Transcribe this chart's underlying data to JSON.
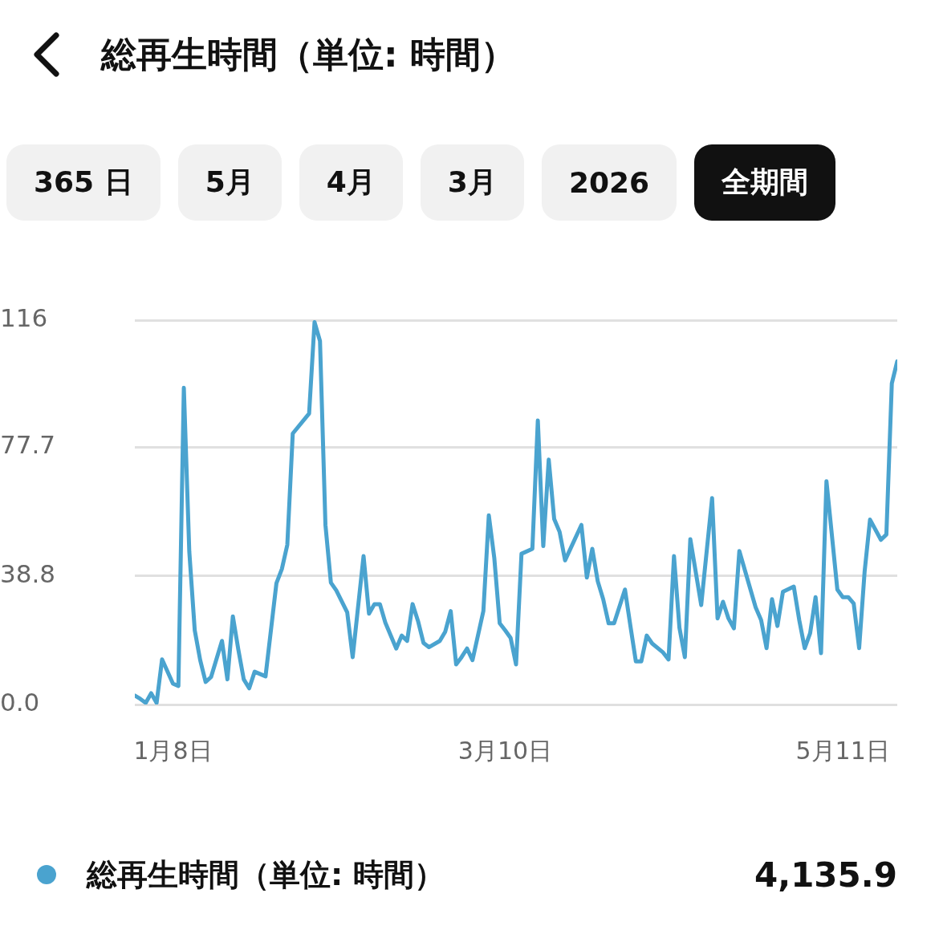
{
  "chart_data": {
    "type": "line",
    "title": "総再生時間（単位: 時間）",
    "annotations": [
      "365 日",
      "5月",
      "4月",
      "3月",
      "2026",
      "全期間",
      "4,135.9"
    ],
    "x": [
      "--01-01",
      "--01-02",
      "--01-03",
      "--01-04",
      "--01-05",
      "--01-06",
      "--01-08",
      "--01-09",
      "--01-10",
      "--01-11",
      "--01-12",
      "--01-13",
      "--01-14",
      "--01-15",
      "--01-17",
      "--01-18",
      "--01-19",
      "--01-20",
      "--01-21",
      "--01-22",
      "--01-23",
      "--01-25",
      "--01-27",
      "--01-28",
      "--01-29",
      "--01-30",
      "--02-02",
      "--02-03",
      "--02-04",
      "--02-05",
      "--02-06",
      "--02-07",
      "--02-09",
      "--02-10",
      "--02-12",
      "--02-13",
      "--02-14",
      "--02-15",
      "--02-16",
      "--02-18",
      "--02-19",
      "--02-20",
      "--02-21",
      "--02-22",
      "--02-23",
      "--02-24",
      "--02-26",
      "--02-27",
      "--02-28",
      "--03-01",
      "--03-02",
      "--03-03",
      "--03-04",
      "--03-06",
      "--03-07",
      "--03-08",
      "--03-09",
      "--03-10",
      "--03-11",
      "--03-12",
      "--03-13",
      "--03-15",
      "--03-16",
      "--03-17",
      "--03-18",
      "--03-19",
      "--03-20",
      "--03-21",
      "--03-24",
      "--03-25",
      "--03-26",
      "--03-27",
      "--03-28",
      "--03-29",
      "--03-30",
      "--04-01",
      "--04-02",
      "--04-03",
      "--04-04",
      "--04-05",
      "--04-06",
      "--04-08",
      "--04-09",
      "--04-10",
      "--04-11",
      "--04-12",
      "--04-13",
      "--04-15",
      "--04-17",
      "--04-18",
      "--04-19",
      "--04-20",
      "--04-21",
      "--04-22",
      "--04-25",
      "--04-26",
      "--04-27",
      "--04-28",
      "--04-29",
      "--04-30",
      "--05-02",
      "--05-03",
      "--05-04",
      "--05-05",
      "--05-06",
      "--05-07",
      "--05-08",
      "--05-10",
      "--05-11",
      "--05-12",
      "--05-13",
      "--05-14",
      "--05-15",
      "--05-16",
      "--05-18",
      "--05-19",
      "--05-20",
      "--05-21"
    ],
    "series": [
      {
        "name": "総再生時間（単位: 時間）",
        "color": "#4aa3cf",
        "values": [
          2.7,
          1.7,
          0.5,
          3.4,
          0.5,
          13.6,
          6.3,
          5.6,
          95.6,
          46.2,
          22.4,
          13.4,
          6.8,
          8.3,
          19.2,
          7.6,
          26.6,
          16.6,
          7.6,
          4.9,
          9.9,
          8.5,
          36.6,
          40.9,
          48.2,
          81.8,
          87.8,
          115.4,
          109.7,
          54.2,
          36.8,
          34.4,
          27.8,
          14.3,
          44.8,
          27.4,
          30.3,
          30.3,
          24.7,
          16.9,
          20.8,
          19.2,
          30.3,
          25.2,
          18.6,
          17.3,
          19.2,
          22.0,
          28.2,
          12.1,
          14.3,
          16.9,
          13.4,
          28.2,
          57.1,
          44.3,
          24.5,
          22.4,
          20.1,
          12.1,
          45.5,
          47.0,
          85.7,
          47.8,
          73.9,
          56.0,
          52.1,
          43.5,
          54.2,
          38.3,
          47.0,
          37.2,
          31.8,
          24.5,
          24.5,
          34.7,
          23.7,
          13.0,
          13.0,
          20.8,
          18.4,
          15.7,
          13.6,
          44.8,
          23.2,
          14.3,
          49.9,
          30.0,
          62.3,
          26.0,
          31.0,
          26.0,
          23.0,
          46.3,
          29.3,
          25.5,
          17.0,
          31.8,
          23.7,
          34.0,
          35.6,
          25.5,
          17.0,
          21.5,
          32.4,
          15.5,
          67.4,
          34.7,
          32.4,
          32.4,
          30.5,
          17.0,
          40.0,
          55.8,
          49.7,
          51.3,
          96.9,
          103.6
        ]
      }
    ],
    "xlim": [
      "--01-01",
      "--05-21"
    ],
    "xticks": [
      {
        "value": "--01-08",
        "label": "1月8日"
      },
      {
        "value": "--03-10",
        "label": "3月10日"
      },
      {
        "value": "--05-11",
        "label": "5月11日"
      }
    ],
    "ylim": [
      0,
      116
    ],
    "yticks": [
      {
        "value": 0,
        "label": "0.0"
      },
      38.8,
      77.7,
      116
    ],
    "grid": "y",
    "legend": "bottom",
    "marker": "none",
    "line_style": "solid"
  }
}
